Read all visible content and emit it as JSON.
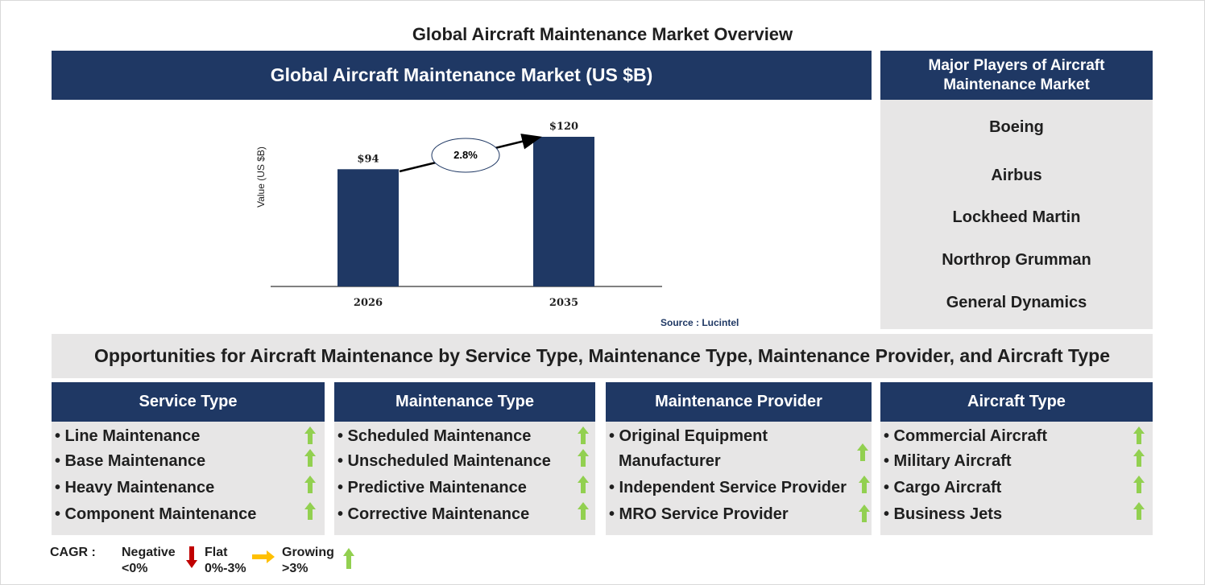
{
  "title": "Global Aircraft Maintenance Market Overview",
  "chart_header": "Global Aircraft Maintenance Market (US $B)",
  "chart_data": {
    "type": "bar",
    "categories": [
      "2026",
      "2035"
    ],
    "values": [
      94,
      120
    ],
    "value_labels": [
      "$94",
      "$120"
    ],
    "ylabel": "Value (US $B)",
    "cagr_label": "2.8%",
    "bar_color": "#1f3864"
  },
  "source": "Source : Lucintel",
  "players": {
    "header": "Major Players of Aircraft Maintenance Market",
    "items": [
      "Boeing",
      "Airbus",
      "Lockheed Martin",
      "Northrop Grumman",
      "General Dynamics"
    ]
  },
  "opportunities_title": "Opportunities for Aircraft Maintenance by Service Type, Maintenance Type, Maintenance Provider, and Aircraft Type",
  "categories": [
    {
      "header": "Service Type",
      "items": [
        "• Line Maintenance",
        "• Base Maintenance",
        "• Heavy Maintenance",
        "• Component Maintenance"
      ]
    },
    {
      "header": "Maintenance Type",
      "items": [
        "• Scheduled Maintenance",
        "• Unscheduled Maintenance",
        "• Predictive Maintenance",
        "• Corrective Maintenance"
      ]
    },
    {
      "header": "Maintenance Provider",
      "items": [
        "• Original Equipment",
        "Manufacturer",
        "• Independent Service Provider",
        "• MRO Service Provider"
      ]
    },
    {
      "header": "Aircraft Type",
      "items": [
        "• Commercial Aircraft",
        "• Military Aircraft",
        "• Cargo Aircraft",
        "• Business Jets"
      ]
    }
  ],
  "legend": {
    "cagr": "CAGR :",
    "negative": "Negative",
    "negative_range": "<0%",
    "flat": "Flat",
    "flat_range": "0%-3%",
    "growing": "Growing",
    "growing_range": ">3%"
  },
  "colors": {
    "navy": "#1f3864",
    "grey": "#e7e6e6",
    "growth_green": "#92d050",
    "negative_red": "#c00000",
    "flat_yellow": "#ffc000"
  }
}
